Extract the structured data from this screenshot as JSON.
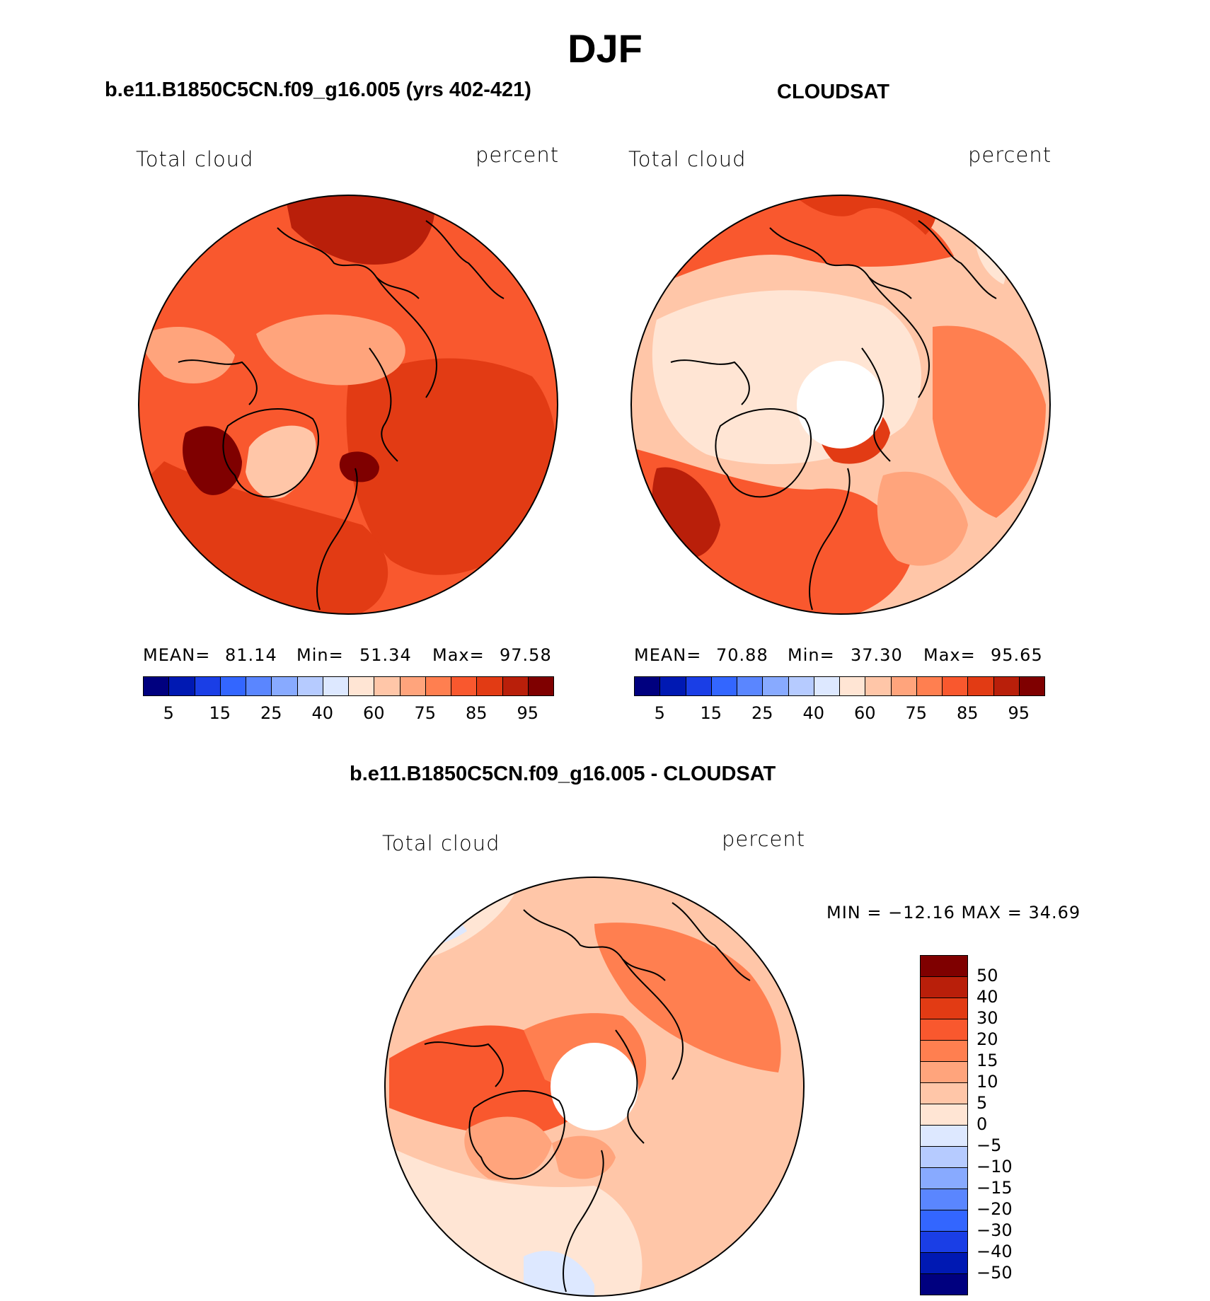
{
  "figure": {
    "title": "DJF"
  },
  "panels": [
    {
      "title": "b.e11.B1850C5CN.f09_g16.005 (yrs 402-421)",
      "variable": "Total cloud",
      "units": "percent",
      "stats": {
        "mean_label": "MEAN=",
        "mean": "81.14",
        "min_label": "Min=",
        "min": "51.34",
        "max_label": "Max=",
        "max": "97.58"
      }
    },
    {
      "title": "CLOUDSAT",
      "variable": "Total cloud",
      "units": "percent",
      "stats": {
        "mean_label": "MEAN=",
        "mean": "70.88",
        "min_label": "Min=",
        "min": "37.30",
        "max_label": "Max=",
        "max": "95.65"
      }
    },
    {
      "title": "b.e11.B1850C5CN.f09_g16.005 - CLOUDSAT",
      "variable": "Total cloud",
      "units": "percent",
      "stats_text": "MIN = −12.16 MAX =   34.69"
    }
  ],
  "colorbar_abs": {
    "colors": [
      "#00007f",
      "#0019b3",
      "#1a3ee6",
      "#3366ff",
      "#5a86ff",
      "#88aaff",
      "#b6cbff",
      "#dde8ff",
      "#ffe5d4",
      "#ffc6a8",
      "#ffa47c",
      "#ff7f50",
      "#f9582e",
      "#e23b14",
      "#b91f0a",
      "#7f0000"
    ],
    "tick_labels": [
      "5",
      "15",
      "25",
      "40",
      "60",
      "75",
      "85",
      "95"
    ]
  },
  "colorbar_diff": {
    "colors": [
      "#7f0000",
      "#b91f0a",
      "#e23b14",
      "#f9582e",
      "#ff7f50",
      "#ffa47c",
      "#ffc6a8",
      "#ffe5d4",
      "#dde8ff",
      "#b6cbff",
      "#88aaff",
      "#5a86ff",
      "#3366ff",
      "#1a3ee6",
      "#0019b3",
      "#00007f"
    ],
    "tick_labels": [
      "50",
      "40",
      "30",
      "20",
      "15",
      "10",
      "5",
      "0",
      "−5",
      "−10",
      "−15",
      "−20",
      "−30",
      "−40",
      "−50"
    ]
  },
  "map_colors": {
    "model_base": "#f9582e",
    "model_dark": "#e23b14",
    "model_darker": "#b91f0a",
    "model_darkest": "#7f0000",
    "model_light": "#ffa47c",
    "model_lighter": "#ffc6a8",
    "obs_base": "#ffc6a8",
    "obs_pale": "#ffe5d4",
    "obs_mid": "#ffa47c",
    "obs_orange": "#ff7f50",
    "obs_red": "#f9582e",
    "obs_dark": "#e23b14",
    "obs_darker": "#b91f0a",
    "diff_base": "#ffc6a8",
    "diff_pale": "#ffe5d4",
    "diff_mid": "#ffa47c",
    "diff_orange": "#ff7f50",
    "diff_red": "#f9582e",
    "diff_blue": "#dde8ff"
  }
}
